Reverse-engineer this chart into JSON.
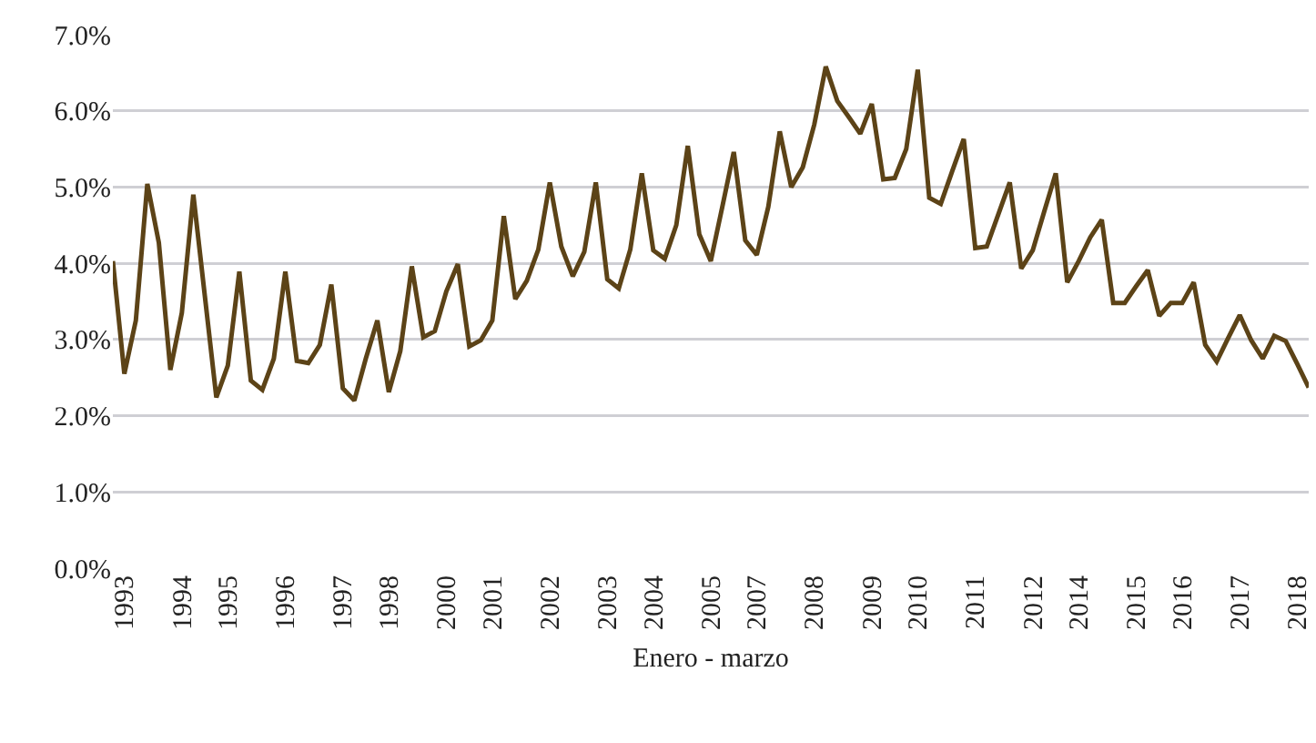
{
  "chart_data": {
    "type": "line",
    "xlabel": "Enero - marzo",
    "categories": [
      null,
      "1993",
      null,
      null,
      null,
      null,
      "1994",
      null,
      null,
      null,
      "1995",
      null,
      null,
      null,
      null,
      "1996",
      null,
      null,
      null,
      null,
      "1997",
      null,
      null,
      null,
      "1998",
      null,
      null,
      null,
      null,
      "2000",
      null,
      null,
      null,
      "2001",
      null,
      null,
      null,
      null,
      "2002",
      null,
      null,
      null,
      null,
      "2003",
      null,
      null,
      null,
      "2004",
      null,
      null,
      null,
      null,
      "2005",
      null,
      null,
      null,
      "2007",
      null,
      null,
      null,
      null,
      "2008",
      null,
      null,
      null,
      null,
      "2009",
      null,
      null,
      null,
      "2010",
      null,
      null,
      null,
      null,
      "2011",
      null,
      null,
      null,
      null,
      "2012",
      null,
      null,
      null,
      "2014",
      null,
      null,
      null,
      null,
      "2015",
      null,
      null,
      null,
      "2016",
      null,
      null,
      null,
      null,
      "2017",
      null,
      null,
      null,
      null,
      "2018",
      null
    ],
    "series": [
      {
        "color": "#5c4317",
        "values": [
          4.03,
          2.55,
          3.25,
          5.04,
          4.27,
          2.6,
          3.35,
          4.9,
          3.57,
          2.24,
          2.66,
          3.89,
          2.46,
          2.34,
          2.75,
          3.89,
          2.72,
          2.69,
          2.93,
          3.72,
          2.36,
          2.2,
          2.75,
          3.25,
          2.31,
          2.85,
          3.96,
          3.03,
          3.11,
          3.63,
          3.99,
          2.91,
          2.99,
          3.25,
          4.62,
          3.53,
          3.77,
          4.18,
          5.06,
          4.22,
          3.83,
          4.15,
          5.06,
          3.79,
          3.67,
          4.18,
          5.18,
          4.17,
          4.06,
          4.5,
          5.54,
          4.38,
          4.03,
          4.74,
          5.46,
          4.3,
          4.11,
          4.74,
          5.73,
          5.0,
          5.26,
          5.82,
          6.58,
          6.13,
          5.92,
          5.7,
          6.09,
          5.1,
          5.12,
          5.5,
          6.54,
          4.86,
          4.78,
          5.21,
          5.63,
          4.2,
          4.22,
          4.64,
          5.06,
          3.93,
          4.17,
          4.68,
          5.18,
          3.75,
          4.03,
          4.34,
          4.57,
          3.48,
          3.48,
          3.7,
          3.91,
          3.31,
          3.48,
          3.48,
          3.75,
          2.93,
          2.71,
          3.02,
          3.32,
          2.99,
          2.75,
          3.05,
          2.98,
          2.68,
          2.37
        ]
      }
    ],
    "ylim": [
      0,
      7
    ],
    "yticks": [
      {
        "value": 0,
        "label": "0.0%"
      },
      {
        "value": 1,
        "label": "1.0%"
      },
      {
        "value": 2,
        "label": "2.0%"
      },
      {
        "value": 3,
        "label": "3.0%"
      },
      {
        "value": 4,
        "label": "4.0%"
      },
      {
        "value": 5,
        "label": "5.0%"
      },
      {
        "value": 6,
        "label": "6.0%"
      },
      {
        "value": 7,
        "label": "7.0%"
      }
    ],
    "grid": "y",
    "marker": "none",
    "line_style": "solid"
  }
}
